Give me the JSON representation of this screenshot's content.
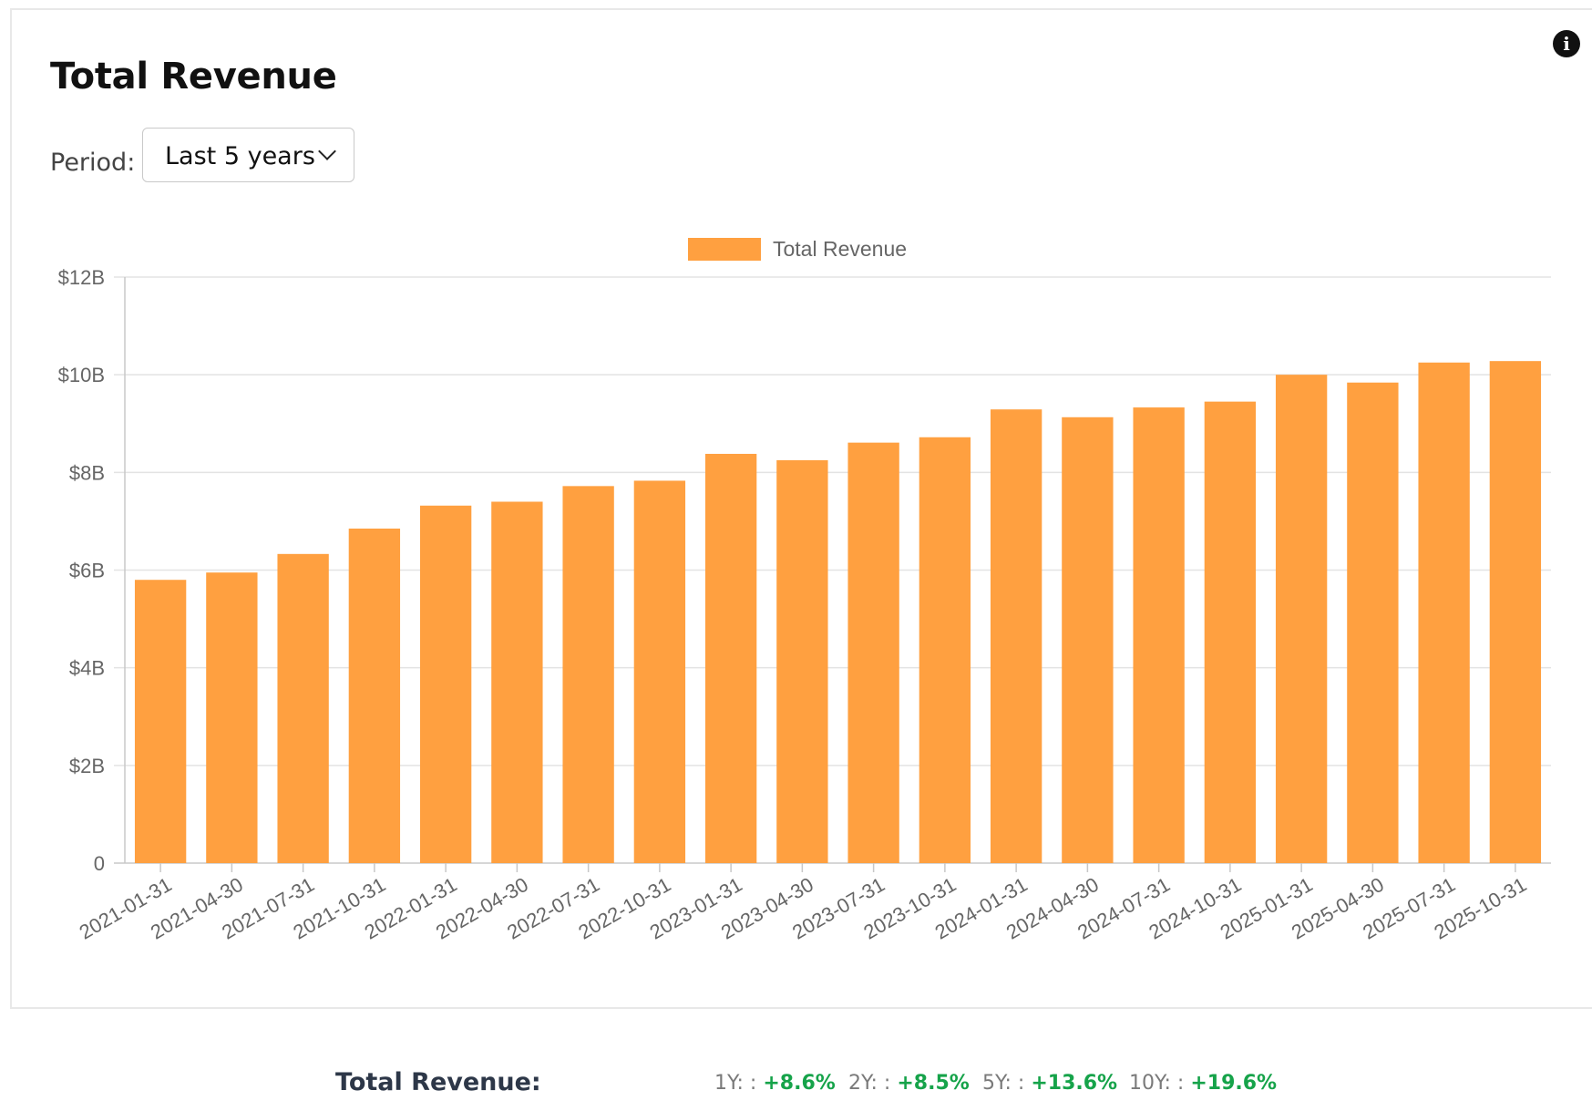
{
  "header": {
    "title": "Total Revenue",
    "info_icon": "info-icon"
  },
  "controls": {
    "period_label": "Period:",
    "period_value": "Last 5 years"
  },
  "colors": {
    "bar": "#ffa040",
    "grid": "#e3e3e3",
    "axis": "#c8c8c8",
    "tick_text": "#666666",
    "positive": "#16a34a"
  },
  "chart_data": {
    "type": "bar",
    "title": "",
    "legend": [
      "Total Revenue"
    ],
    "legend_position": "top",
    "xlabel": "",
    "ylabel": "",
    "ylim": [
      0,
      12
    ],
    "y_ticks": [
      0,
      2,
      4,
      6,
      8,
      10,
      12
    ],
    "y_tick_labels": [
      "0",
      "$2B",
      "$4B",
      "$6B",
      "$8B",
      "$10B",
      "$12B"
    ],
    "grid": true,
    "categories": [
      "2021-01-31",
      "2021-04-30",
      "2021-07-31",
      "2021-10-31",
      "2022-01-31",
      "2022-04-30",
      "2022-07-31",
      "2022-10-31",
      "2023-01-31",
      "2023-04-30",
      "2023-07-31",
      "2023-10-31",
      "2024-01-31",
      "2024-04-30",
      "2024-07-31",
      "2024-10-31",
      "2025-01-31",
      "2025-04-30",
      "2025-07-31",
      "2025-10-31"
    ],
    "series": [
      {
        "name": "Total Revenue",
        "unit": "billions USD",
        "values": [
          5.8,
          5.95,
          6.33,
          6.85,
          7.32,
          7.4,
          7.72,
          7.83,
          8.38,
          8.25,
          8.61,
          8.72,
          9.29,
          9.13,
          9.33,
          9.45,
          10.0,
          9.84,
          10.25,
          10.28
        ]
      }
    ]
  },
  "summary": {
    "label": "Total Revenue:",
    "stats": [
      {
        "key": "1Y: :",
        "value": "+8.6%"
      },
      {
        "key": "2Y: :",
        "value": "+8.5%"
      },
      {
        "key": "5Y: :",
        "value": "+13.6%"
      },
      {
        "key": "10Y: :",
        "value": "+19.6%"
      }
    ]
  }
}
